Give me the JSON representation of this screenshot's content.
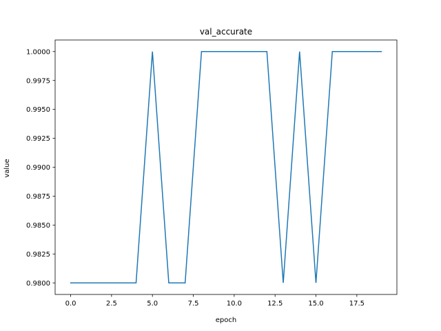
{
  "chart_data": {
    "type": "line",
    "title": "val_accurate",
    "xlabel": "epoch",
    "ylabel": "value",
    "xlim": [
      -0.95,
      19.95
    ],
    "ylim": [
      0.979,
      1.001
    ],
    "xticks": [
      0.0,
      2.5,
      5.0,
      7.5,
      10.0,
      12.5,
      15.0,
      17.5
    ],
    "xtick_labels": [
      "0.0",
      "2.5",
      "5.0",
      "7.5",
      "10.0",
      "12.5",
      "15.0",
      "17.5"
    ],
    "yticks": [
      0.98,
      0.9825,
      0.985,
      0.9875,
      0.99,
      0.9925,
      0.995,
      0.9975,
      1.0
    ],
    "ytick_labels": [
      "0.9800",
      "0.9825",
      "0.9850",
      "0.9875",
      "0.9900",
      "0.9925",
      "0.9950",
      "0.9975",
      "1.0000"
    ],
    "grid": false,
    "series": [
      {
        "color": "#1f77b4",
        "x": [
          0,
          1,
          2,
          3,
          4,
          5,
          6,
          7,
          8,
          9,
          10,
          11,
          12,
          13,
          14,
          15,
          16,
          17,
          18,
          19
        ],
        "values": [
          0.98,
          0.98,
          0.98,
          0.98,
          0.98,
          1.0,
          0.98,
          0.98,
          1.0,
          1.0,
          1.0,
          1.0,
          1.0,
          0.98,
          1.0,
          0.98,
          1.0,
          1.0,
          1.0,
          1.0
        ]
      }
    ]
  }
}
